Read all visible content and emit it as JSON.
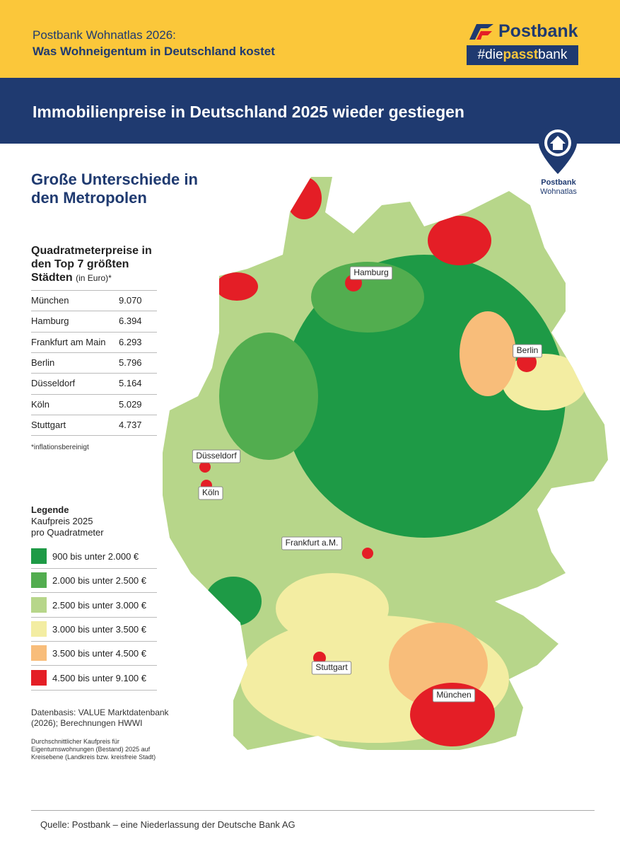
{
  "header": {
    "line1": "Postbank Wohnatlas 2026:",
    "line2": "Was Wohneigentum in Deutschland kostet",
    "brand": "Postbank",
    "hashtag": [
      "#die",
      "passt",
      "bank"
    ]
  },
  "banner": {
    "title": "Immobilienpreise in Deutschland 2025 wieder gestiegen"
  },
  "logo": {
    "line1": "Postbank",
    "line2": "Wohnatlas"
  },
  "subtitle": "Große Unterschiede in den Metropolen",
  "table": {
    "title": "Quadratmeterpreise in den Top 7 größten Städten",
    "unit": "(in Euro)*",
    "rows": [
      [
        "München",
        "9.070"
      ],
      [
        "Hamburg",
        "6.394"
      ],
      [
        "Frankfurt am Main",
        "6.293"
      ],
      [
        "Berlin",
        "5.796"
      ],
      [
        "Düsseldorf",
        "5.164"
      ],
      [
        "Köln",
        "5.029"
      ],
      [
        "Stuttgart",
        "4.737"
      ]
    ],
    "footnote": "*inflationsbereinigt"
  },
  "legend": {
    "title": "Legende",
    "subtitle": [
      "Kaufpreis 2025",
      "pro Quadratmeter"
    ],
    "items": [
      {
        "label": "900 bis unter 2.000 €",
        "color": "#1e9a46"
      },
      {
        "label": "2.000 bis unter 2.500 €",
        "color": "#52ad4f"
      },
      {
        "label": "2.500 bis unter 3.000 €",
        "color": "#b7d68a"
      },
      {
        "label": "3.000 bis unter 3.500 €",
        "color": "#f3eda2"
      },
      {
        "label": "3.500 bis unter 4.500 €",
        "color": "#f8bd7a"
      },
      {
        "label": "4.500 bis unter  9.100 €",
        "color": "#e41e26"
      }
    ]
  },
  "datasource": "Datenbasis: VALUE Marktdatenbank (2026); Berechnungen HWWI",
  "note": "Durchschnittlicher Kaufpreis für Eigentumswohnungen (Bestand) 2025 auf Kreisebene (Landkreis bzw. kreisfreie Stadt)",
  "map": {
    "cities": [
      "Hamburg",
      "Berlin",
      "Düsseldorf",
      "Köln",
      "Frankfurt a.M.",
      "Stuttgart",
      "München"
    ]
  },
  "source": "Quelle: Postbank – eine Niederlassung der Deutsche Bank AG"
}
